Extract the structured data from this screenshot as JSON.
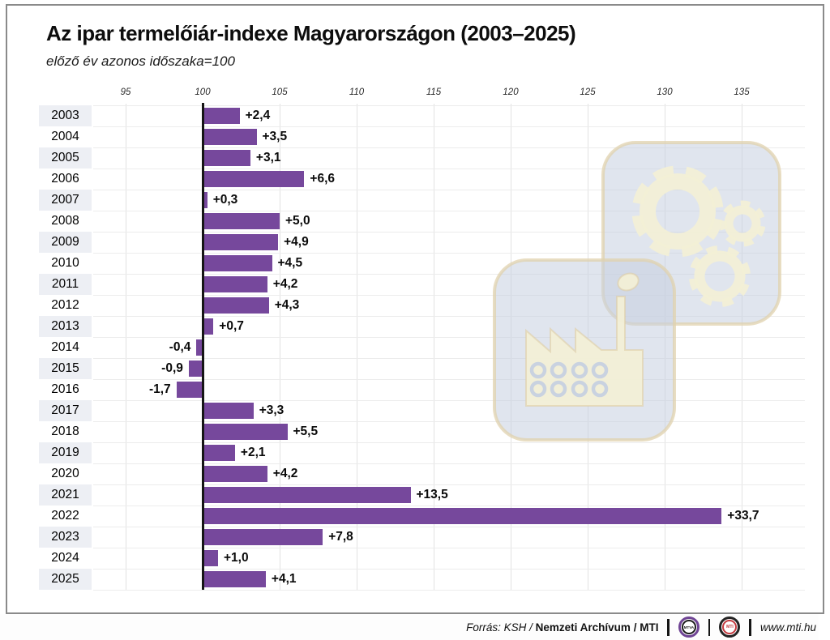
{
  "header": {
    "title": "Az ipar termelőiár-indexe Magyarországon (2003–2025)",
    "subtitle": "előző év azonos időszaka=100"
  },
  "chart_data": {
    "type": "bar",
    "orientation": "horizontal",
    "title": "Az ipar termelőiár-indexe Magyarországon (2003–2025)",
    "subtitle": "előző év azonos időszaka=100",
    "baseline_value": 100,
    "xlabel": "",
    "ylabel": "év",
    "axis": {
      "ticks": [
        95,
        100,
        105,
        110,
        115,
        120,
        125,
        130,
        135
      ],
      "min": 92.9,
      "max": 139.1,
      "grid": true
    },
    "value_note": "change vs. previous year period, percentage points relative to index 100",
    "rows": [
      {
        "year": "2003",
        "value": 2.4,
        "label": "+2,4"
      },
      {
        "year": "2004",
        "value": 3.5,
        "label": "+3,5"
      },
      {
        "year": "2005",
        "value": 3.1,
        "label": "+3,1"
      },
      {
        "year": "2006",
        "value": 6.6,
        "label": "+6,6"
      },
      {
        "year": "2007",
        "value": 0.3,
        "label": "+0,3"
      },
      {
        "year": "2008",
        "value": 5.0,
        "label": "+5,0"
      },
      {
        "year": "2009",
        "value": 4.9,
        "label": "+4,9"
      },
      {
        "year": "2010",
        "value": 4.5,
        "label": "+4,5"
      },
      {
        "year": "2011",
        "value": 4.2,
        "label": "+4,2"
      },
      {
        "year": "2012",
        "value": 4.3,
        "label": "+4,3"
      },
      {
        "year": "2013",
        "value": 0.7,
        "label": "+0,7"
      },
      {
        "year": "2014",
        "value": -0.4,
        "label": "-0,4"
      },
      {
        "year": "2015",
        "value": -0.9,
        "label": "-0,9"
      },
      {
        "year": "2016",
        "value": -1.7,
        "label": "-1,7"
      },
      {
        "year": "2017",
        "value": 3.3,
        "label": "+3,3"
      },
      {
        "year": "2018",
        "value": 5.5,
        "label": "+5,5"
      },
      {
        "year": "2019",
        "value": 2.1,
        "label": "+2,1"
      },
      {
        "year": "2020",
        "value": 4.2,
        "label": "+4,2"
      },
      {
        "year": "2021",
        "value": 13.5,
        "label": "+13,5"
      },
      {
        "year": "2022",
        "value": 33.7,
        "label": "+33,7"
      },
      {
        "year": "2023",
        "value": 7.8,
        "label": "+7,8"
      },
      {
        "year": "2024",
        "value": 1.0,
        "label": "+1,0"
      },
      {
        "year": "2025",
        "value": 4.1,
        "label": "+4,1"
      }
    ],
    "colors": {
      "bar": "#76489c",
      "row_stripe": "#edeff4",
      "baseline": "#161616",
      "grid_vertical": "#e2e2e2",
      "grid_horizontal": "#ececec"
    },
    "legend": null
  },
  "watermark": {
    "icon": "factory-gears-icon",
    "panel_color": "#c6d0e0",
    "glyph_color": "#f2efd6"
  },
  "footer": {
    "source_italic": "Forrás: KSH",
    "separator": "/",
    "source_bold_1": "Nemzeti Archívum",
    "source_bold_2": "MTI",
    "mtva_logo_label": "MTVA",
    "mti_logo_label": "MTI",
    "website": "www.mti.hu"
  }
}
